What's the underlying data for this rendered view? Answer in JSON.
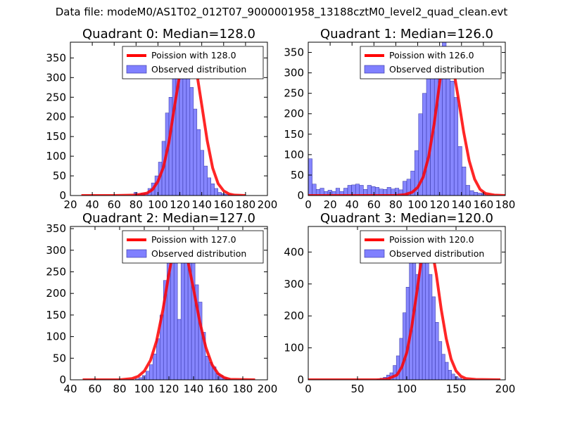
{
  "figure": {
    "suptitle": "Data file: modeM0/AS1T02_012T07_9000001958_13188cztM0_level2_quad_clean.evt"
  },
  "chart_data": [
    {
      "type": "bar",
      "title": "Quadrant 0: Median=128.0",
      "xlim": [
        20,
        200
      ],
      "ylim": [
        0,
        390
      ],
      "xticks": [
        20,
        40,
        60,
        80,
        100,
        120,
        140,
        160,
        180,
        200
      ],
      "yticks": [
        0,
        50,
        100,
        150,
        200,
        250,
        300,
        350
      ],
      "legend": {
        "position": "top-right",
        "line_label": "Poission with 128.0",
        "bar_label": "Observed distribution"
      },
      "histogram": {
        "x_start": 30,
        "bin_width": 3.2,
        "counts": [
          0,
          0,
          0,
          0,
          0,
          0,
          0,
          0,
          0,
          0,
          0,
          0,
          0,
          0,
          0,
          8,
          3,
          6,
          6,
          18,
          32,
          50,
          85,
          138,
          210,
          250,
          305,
          370,
          365,
          330,
          300,
          275,
          220,
          168,
          115,
          75,
          45,
          30,
          18,
          8,
          5,
          3,
          2,
          1,
          1,
          1,
          0,
          0,
          0,
          0
        ]
      },
      "fit": {
        "label": "Poission with 128.0",
        "x": [
          30,
          60,
          80,
          90,
          95,
          100,
          105,
          110,
          115,
          120,
          125,
          128,
          131,
          135,
          140,
          145,
          150,
          155,
          160,
          165,
          170,
          180
        ],
        "y": [
          0,
          0,
          1,
          6,
          15,
          36,
          72,
          135,
          225,
          310,
          365,
          375,
          365,
          320,
          230,
          140,
          70,
          30,
          12,
          4,
          1,
          0
        ]
      }
    },
    {
      "type": "bar",
      "title": "Quadrant 1: Median=126.0",
      "xlim": [
        0,
        180
      ],
      "ylim": [
        0,
        375
      ],
      "xticks": [
        0,
        20,
        40,
        60,
        80,
        100,
        120,
        140,
        160,
        180
      ],
      "yticks": [
        0,
        50,
        100,
        150,
        200,
        250,
        300,
        350
      ],
      "legend": {
        "position": "top-right",
        "line_label": "Poission with 126.0",
        "bar_label": "Observed distribution"
      },
      "histogram": {
        "x_start": 0,
        "bin_width": 3.6,
        "counts": [
          90,
          28,
          15,
          18,
          10,
          13,
          10,
          18,
          10,
          18,
          25,
          26,
          28,
          25,
          15,
          25,
          22,
          20,
          16,
          15,
          20,
          16,
          18,
          14,
          35,
          40,
          60,
          110,
          200,
          250,
          300,
          360,
          300,
          340,
          380,
          330,
          280,
          240,
          120,
          70,
          25,
          12,
          8,
          6,
          5,
          0,
          0,
          0,
          0,
          0
        ]
      },
      "fit": {
        "label": "Poission with 126.0",
        "x": [
          0,
          80,
          88,
          95,
          100,
          105,
          110,
          115,
          120,
          123,
          126,
          129,
          132,
          137,
          142,
          147,
          152,
          157,
          162,
          170,
          180
        ],
        "y": [
          0,
          0,
          2,
          8,
          20,
          45,
          95,
          175,
          275,
          330,
          360,
          355,
          320,
          240,
          155,
          85,
          40,
          15,
          5,
          1,
          0
        ]
      }
    },
    {
      "type": "bar",
      "title": "Quadrant 2: Median=127.0",
      "xlim": [
        40,
        200
      ],
      "ylim": [
        0,
        355
      ],
      "xticks": [
        40,
        60,
        80,
        100,
        120,
        140,
        160,
        180,
        200
      ],
      "yticks": [
        0,
        50,
        100,
        150,
        200,
        250,
        300,
        350
      ],
      "legend": {
        "position": "top-right",
        "line_label": "Poission with 127.0",
        "bar_label": "Observed distribution"
      },
      "histogram": {
        "x_start": 50,
        "bin_width": 2.85,
        "counts": [
          0,
          0,
          0,
          0,
          0,
          0,
          0,
          0,
          0,
          0,
          0,
          0,
          0,
          0,
          0,
          2,
          5,
          10,
          20,
          35,
          60,
          95,
          150,
          230,
          275,
          305,
          325,
          140,
          285,
          335,
          330,
          305,
          220,
          180,
          110,
          55,
          40,
          30,
          15,
          10,
          5,
          2,
          0,
          0,
          0,
          0,
          0,
          0,
          0,
          0
        ]
      },
      "fit": {
        "label": "Poission with 127.0",
        "x": [
          50,
          80,
          90,
          95,
          100,
          105,
          110,
          115,
          120,
          124,
          127,
          130,
          134,
          140,
          145,
          150,
          155,
          160,
          165,
          170,
          190
        ],
        "y": [
          0,
          0,
          3,
          8,
          20,
          45,
          90,
          160,
          245,
          305,
          335,
          325,
          295,
          210,
          135,
          75,
          35,
          14,
          5,
          1,
          0
        ]
      }
    },
    {
      "type": "bar",
      "title": "Quadrant 3: Median=120.0",
      "xlim": [
        0,
        200
      ],
      "ylim": [
        0,
        480
      ],
      "xticks": [
        0,
        50,
        100,
        150,
        200
      ],
      "yticks": [
        0,
        100,
        200,
        300,
        400
      ],
      "legend": {
        "position": "top-right",
        "line_label": "Poission with 120.0",
        "bar_label": "Observed distribution"
      },
      "histogram": {
        "x_start": 30,
        "bin_width": 3.3,
        "counts": [
          0,
          0,
          0,
          0,
          0,
          0,
          0,
          0,
          0,
          0,
          0,
          0,
          2,
          5,
          8,
          15,
          22,
          45,
          75,
          130,
          210,
          290,
          390,
          440,
          330,
          400,
          450,
          390,
          330,
          260,
          180,
          120,
          80,
          55,
          30,
          18,
          10,
          5,
          2,
          1,
          0,
          0,
          0,
          0,
          0,
          0,
          0,
          0,
          0,
          0
        ]
      },
      "fit": {
        "label": "Poission with 120.0",
        "x": [
          0,
          70,
          80,
          90,
          95,
          100,
          105,
          110,
          115,
          120,
          125,
          130,
          135,
          140,
          145,
          150,
          155,
          160,
          170,
          195
        ],
        "y": [
          0,
          0,
          2,
          15,
          40,
          85,
          165,
          270,
          380,
          450,
          420,
          330,
          220,
          130,
          65,
          28,
          11,
          4,
          1,
          0
        ]
      }
    }
  ]
}
